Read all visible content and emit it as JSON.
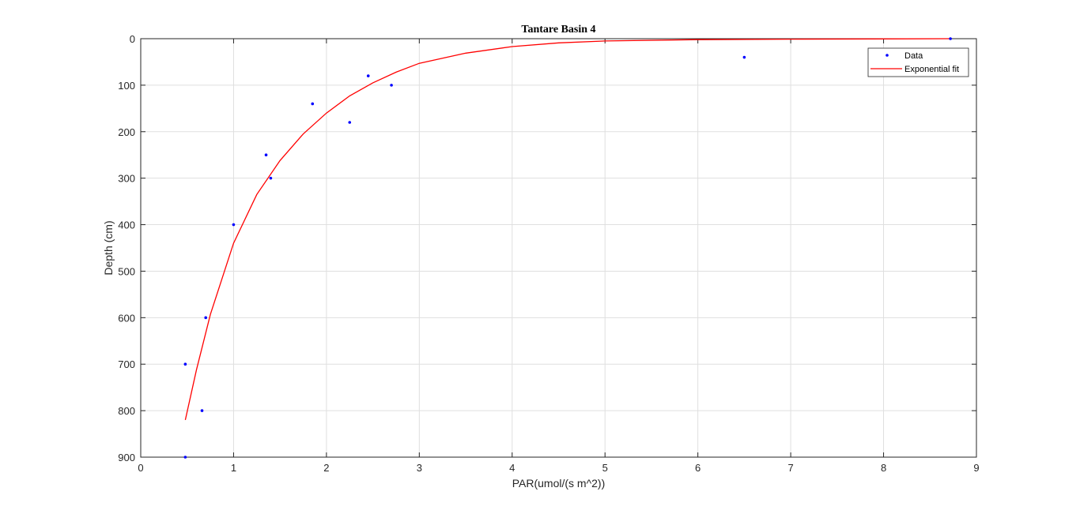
{
  "chart_data": {
    "type": "scatter",
    "title": "Tantare Basin 4",
    "xlabel": "PAR(umol/(s m^2))",
    "ylabel": "Depth (cm)",
    "xlim": [
      0,
      9
    ],
    "ylim": [
      0,
      900
    ],
    "y_reversed": true,
    "grid": true,
    "legend_position": "top-right",
    "xticks": [
      0,
      1,
      2,
      3,
      4,
      5,
      6,
      7,
      8,
      9
    ],
    "yticks": [
      0,
      100,
      200,
      300,
      400,
      500,
      600,
      700,
      800,
      900
    ],
    "series": [
      {
        "name": "Data",
        "kind": "markers",
        "color": "#0000ff",
        "points": [
          {
            "x": 8.72,
            "y": 0
          },
          {
            "x": 6.5,
            "y": 40
          },
          {
            "x": 2.45,
            "y": 80
          },
          {
            "x": 2.7,
            "y": 100
          },
          {
            "x": 1.85,
            "y": 140
          },
          {
            "x": 2.25,
            "y": 180
          },
          {
            "x": 1.35,
            "y": 250
          },
          {
            "x": 1.4,
            "y": 300
          },
          {
            "x": 1.0,
            "y": 400
          },
          {
            "x": 0.7,
            "y": 600
          },
          {
            "x": 0.48,
            "y": 700
          },
          {
            "x": 0.66,
            "y": 800
          },
          {
            "x": 0.48,
            "y": 900
          }
        ]
      },
      {
        "name": "Exponential fit",
        "kind": "line",
        "color": "#ff0000",
        "points": [
          {
            "x": 0.48,
            "y": 820
          },
          {
            "x": 0.6,
            "y": 712
          },
          {
            "x": 0.75,
            "y": 593
          },
          {
            "x": 1.0,
            "y": 440
          },
          {
            "x": 1.25,
            "y": 335
          },
          {
            "x": 1.5,
            "y": 262
          },
          {
            "x": 1.75,
            "y": 205
          },
          {
            "x": 2.0,
            "y": 160
          },
          {
            "x": 2.25,
            "y": 123
          },
          {
            "x": 2.5,
            "y": 95
          },
          {
            "x": 2.75,
            "y": 72
          },
          {
            "x": 3.0,
            "y": 53
          },
          {
            "x": 3.5,
            "y": 31
          },
          {
            "x": 4.0,
            "y": 17
          },
          {
            "x": 4.5,
            "y": 9
          },
          {
            "x": 5.0,
            "y": 5
          },
          {
            "x": 6.0,
            "y": 2
          },
          {
            "x": 7.0,
            "y": 1
          },
          {
            "x": 8.72,
            "y": 0
          }
        ]
      }
    ]
  }
}
